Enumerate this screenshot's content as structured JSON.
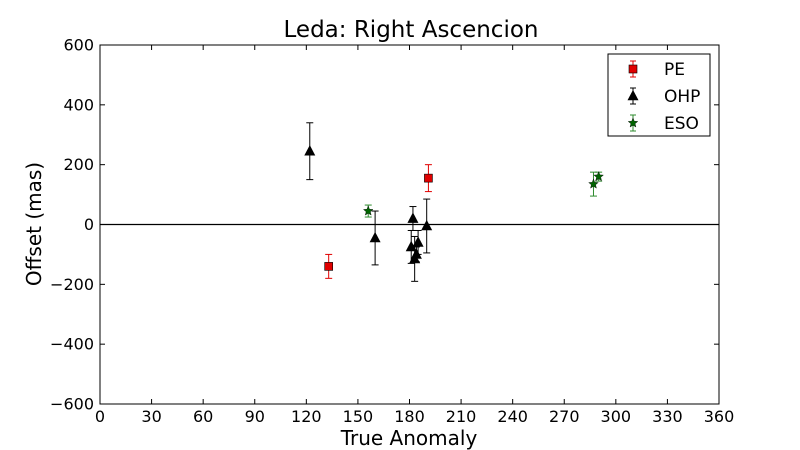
{
  "chart_data": {
    "type": "scatter",
    "title": "Leda: Right Ascencion",
    "xlabel": "True Anomaly",
    "ylabel": "Offset (mas)",
    "xlim": [
      0,
      360
    ],
    "ylim": [
      -600,
      600
    ],
    "xticks": [
      0,
      30,
      60,
      90,
      120,
      150,
      180,
      210,
      240,
      270,
      300,
      330,
      360
    ],
    "yticks": [
      -600,
      -400,
      -200,
      0,
      200,
      400,
      600
    ],
    "xtick_labels": [
      "0",
      "30",
      "60",
      "90",
      "120",
      "150",
      "180",
      "210",
      "240",
      "270",
      "300",
      "330",
      "360"
    ],
    "ytick_labels": [
      "−600",
      "−400",
      "−200",
      "0",
      "200",
      "400",
      "600"
    ],
    "zero_line": true,
    "grid": false,
    "legend_position": "top-right",
    "series": [
      {
        "name": "PE",
        "marker": "square",
        "color": "#e00000",
        "errorbar_color": "#e00000",
        "points": [
          {
            "x": 133,
            "y": -140,
            "err": 40
          },
          {
            "x": 191,
            "y": 155,
            "err": 45
          }
        ]
      },
      {
        "name": "OHP",
        "marker": "triangle",
        "color": "#000000",
        "errorbar_color": "#000000",
        "points": [
          {
            "x": 122,
            "y": 245,
            "err": 95
          },
          {
            "x": 160,
            "y": -45,
            "err": 90
          },
          {
            "x": 181,
            "y": -75,
            "err": 55
          },
          {
            "x": 182,
            "y": 20,
            "err": 40
          },
          {
            "x": 183,
            "y": -115,
            "err": 75
          },
          {
            "x": 184,
            "y": -100,
            "err": 25
          },
          {
            "x": 185,
            "y": -60,
            "err": 40
          },
          {
            "x": 190,
            "y": -5,
            "err": 90
          }
        ]
      },
      {
        "name": "ESO",
        "marker": "star",
        "color": "#006400",
        "errorbar_color": "#2e8b2e",
        "points": [
          {
            "x": 156,
            "y": 45,
            "err": 20
          },
          {
            "x": 287,
            "y": 135,
            "err": 40
          },
          {
            "x": 290,
            "y": 160,
            "err": 15
          }
        ]
      }
    ]
  }
}
